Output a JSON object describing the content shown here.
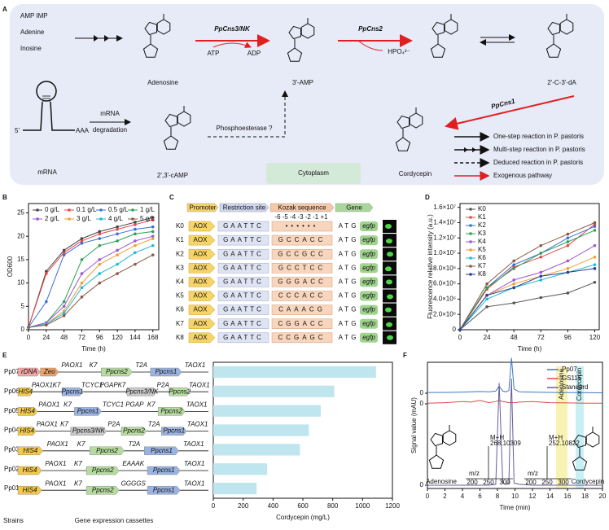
{
  "panel_labels": [
    "A",
    "B",
    "C",
    "D",
    "E",
    "F"
  ],
  "panel_a": {
    "sources": [
      "AMP  IMP",
      "Adenine",
      "Inosine"
    ],
    "compounds": [
      "Adenosine",
      "3'-AMP",
      "2'-C-3'-dA",
      "2',3'-cAMP",
      "Cordycepin"
    ],
    "enzymes": [
      "PpCns3/NK",
      "PpCns2",
      "PpCns1"
    ],
    "cofactors": [
      "ATP",
      "ADP",
      "HPO₄²⁻"
    ],
    "mrna": {
      "strand_5": "5'",
      "tail": "AAA",
      "name": "mRNA"
    },
    "degradation": [
      "mRNA",
      "degradation"
    ],
    "phosphoesterase": "Phosphoesterase ?",
    "compartment": "Cytoplasm",
    "legend": [
      "One-step reaction in P. pastoris",
      "Multi-step reaction in P. pastoris",
      "Deduced reaction in P. pastoris",
      "Exogenous pathway"
    ]
  },
  "panel_c": {
    "headers": [
      "Promoter",
      "Restriction site",
      "Kozak sequence",
      "Gene"
    ],
    "positions": "-6 -5 -4 -3 -2 -1 +1",
    "rows": [
      {
        "name": "K0",
        "promoter": "AOX",
        "site": "GAATTC",
        "kozak": "••••••",
        "start": "ATG",
        "gene": "egfp"
      },
      {
        "name": "K1",
        "promoter": "AOX",
        "site": "GAATTC",
        "kozak": "GCCACC",
        "start": "ATG",
        "gene": "egfp"
      },
      {
        "name": "K2",
        "promoter": "AOX",
        "site": "GAATTC",
        "kozak": "GCCGCC",
        "start": "ATG",
        "gene": "egfp"
      },
      {
        "name": "K3",
        "promoter": "AOX",
        "site": "GAATTC",
        "kozak": "GCCTCC",
        "start": "ATG",
        "gene": "egfp"
      },
      {
        "name": "K4",
        "promoter": "AOX",
        "site": "GAATTC",
        "kozak": "GGGACC",
        "start": "ATG",
        "gene": "egfp"
      },
      {
        "name": "K5",
        "promoter": "AOX",
        "site": "GAATTC",
        "kozak": "CCCACC",
        "start": "ATG",
        "gene": "egfp"
      },
      {
        "name": "K6",
        "promoter": "AOX",
        "site": "GAATTC",
        "kozak": "CAAACG",
        "start": "ATG",
        "gene": "egfp"
      },
      {
        "name": "K7",
        "promoter": "AOX",
        "site": "GAATTC",
        "kozak": "CGGACC",
        "start": "ATG",
        "gene": "egfp"
      },
      {
        "name": "K8",
        "promoter": "AOX",
        "site": "GAATTC",
        "kozak": "CCGAGC",
        "start": "ATG",
        "gene": "egfp"
      }
    ]
  },
  "panel_e": {
    "strains_label": "Strains",
    "cassettes_label": "Gene expression cassettes",
    "cassettes": [
      [
        {
          "label": "rDNA",
          "color": "#f4a6a6"
        },
        {
          "label": "Zeo",
          "color": "#e9a36a"
        },
        {
          "label": "PAOX1"
        },
        {
          "label": "K7"
        },
        {
          "label": "Ppcns2",
          "color": "#b6dba0"
        },
        {
          "label": "T2A"
        },
        {
          "label": "Ppcns1",
          "color": "#9bb3e0"
        },
        {
          "label": "TAOX1"
        }
      ],
      [
        {
          "label": "HIS4",
          "color": "#f2c94c"
        },
        {
          "label": "PAOX1"
        },
        {
          "label": "K7"
        },
        {
          "label": "Ppcns1",
          "color": "#9bb3e0"
        },
        {
          "label": "TCYC1"
        },
        {
          "label": "PGAP"
        },
        {
          "label": "K7"
        },
        {
          "label": "Ppcns3/NK",
          "color": "#c9c9c9"
        },
        {
          "label": "P2A"
        },
        {
          "label": "Ppcns2",
          "color": "#b6dba0"
        },
        {
          "label": "TAOX1"
        }
      ],
      [
        {
          "label": "HIS4",
          "color": "#f2c94c"
        },
        {
          "label": "PAOX1"
        },
        {
          "label": "K7"
        },
        {
          "label": "Ppcns1",
          "color": "#9bb3e0"
        },
        {
          "label": "TCYC1"
        },
        {
          "label": "PGAP"
        },
        {
          "label": "K7"
        },
        {
          "label": "Ppcns2",
          "color": "#b6dba0"
        },
        {
          "label": "TAOX1"
        }
      ],
      [
        {
          "label": "HIS4",
          "color": "#f2c94c"
        },
        {
          "label": "PAOX1"
        },
        {
          "label": "K7"
        },
        {
          "label": "Ppcns3/NK",
          "color": "#c9c9c9"
        },
        {
          "label": "P2A"
        },
        {
          "label": "Ppcns2",
          "color": "#b6dba0"
        },
        {
          "label": "T2A"
        },
        {
          "label": "Ppcns1",
          "color": "#9bb3e0"
        },
        {
          "label": "TAOX1"
        }
      ],
      [
        {
          "label": "HIS4",
          "color": "#f2c94c"
        },
        {
          "label": "PAOX1"
        },
        {
          "label": "K7"
        },
        {
          "label": "Ppcns2",
          "color": "#b6dba0"
        },
        {
          "label": "T2A"
        },
        {
          "label": "Ppcns1",
          "color": "#9bb3e0"
        },
        {
          "label": "TAOX1"
        }
      ],
      [
        {
          "label": "HIS4",
          "color": "#f2c94c"
        },
        {
          "label": "PAOX1"
        },
        {
          "label": "K7"
        },
        {
          "label": "Ppcns2",
          "color": "#b6dba0"
        },
        {
          "label": "EAAAK"
        },
        {
          "label": "Ppcns1",
          "color": "#9bb3e0"
        },
        {
          "label": "TAOX1"
        }
      ],
      [
        {
          "label": "HIS4",
          "color": "#f2c94c"
        },
        {
          "label": "PAOX1"
        },
        {
          "label": "K7"
        },
        {
          "label": "Ppcns2",
          "color": "#b6dba0"
        },
        {
          "label": "GGGGS"
        },
        {
          "label": "Ppcns1",
          "color": "#9bb3e0"
        },
        {
          "label": "TAOX1"
        }
      ]
    ]
  },
  "chart_data": [
    {
      "type": "line",
      "x_label": "Time (h)",
      "y_label": "OD600",
      "x": [
        0,
        24,
        48,
        72,
        96,
        120,
        144,
        168
      ],
      "xlim": [
        0,
        176
      ],
      "xticks": [
        0,
        24,
        48,
        72,
        96,
        120,
        144,
        168
      ],
      "ylim": [
        0,
        27
      ],
      "yticks": [
        0,
        5,
        10,
        15,
        20,
        25
      ],
      "series": [
        {
          "name": "0 g/L",
          "color": "#444444",
          "values": [
            0.5,
            12.5,
            17,
            19.5,
            21,
            22,
            23,
            24
          ]
        },
        {
          "name": "0.1 g/L",
          "color": "#e8464a",
          "values": [
            0.5,
            12,
            16.5,
            19,
            20.5,
            21.5,
            22.5,
            23.5
          ]
        },
        {
          "name": "0.5 g/L",
          "color": "#3b6fd8",
          "values": [
            0.5,
            6,
            16,
            18.5,
            19.5,
            20.5,
            21.5,
            22
          ]
        },
        {
          "name": "1 g/L",
          "color": "#2ca05a",
          "values": [
            0.5,
            1.5,
            6,
            15,
            18,
            19,
            20.5,
            21
          ]
        },
        {
          "name": "2 g/L",
          "color": "#9b59d0",
          "values": [
            0.5,
            1.5,
            5,
            12,
            15,
            17,
            19,
            20
          ]
        },
        {
          "name": "3 g/L",
          "color": "#f0a030",
          "values": [
            0.5,
            1.2,
            4,
            10,
            14,
            16,
            18,
            19.5
          ]
        },
        {
          "name": "4 g/L",
          "color": "#20b8d8",
          "values": [
            0.5,
            1.2,
            3.5,
            9,
            12,
            14,
            16.5,
            18
          ]
        },
        {
          "name": "5 g/L",
          "color": "#8a5a44",
          "values": [
            0.5,
            1,
            3,
            7,
            10,
            12,
            14,
            16
          ]
        }
      ]
    },
    {
      "type": "line",
      "x_label": "Time (h)",
      "y_label": "Fluorescence relative intensity (a.u.)",
      "x": [
        0,
        24,
        48,
        72,
        96,
        120
      ],
      "xlim": [
        0,
        124
      ],
      "xticks": [
        0,
        24,
        48,
        72,
        96,
        120
      ],
      "ylim": [
        0,
        16500000
      ],
      "yticks": [
        0,
        {
          "value": 2000000,
          "label": "2.0×10⁶"
        },
        {
          "value": 4000000,
          "label": "4.0×10⁶"
        },
        {
          "value": 6000000,
          "label": "6.0×10⁶"
        },
        {
          "value": 8000000,
          "label": "8.0×10⁶"
        },
        {
          "value": 10000000,
          "label": "1.0×10⁷"
        },
        {
          "value": 12000000,
          "label": "1.2×10⁷"
        },
        {
          "value": 14000000,
          "label": "1.4×10⁷"
        },
        {
          "value": 16000000,
          "label": "1.6×10⁷"
        }
      ],
      "series": [
        {
          "name": "K0",
          "color": "#555555",
          "values": [
            0,
            3000000,
            3500000,
            4200000,
            4800000,
            6200000
          ]
        },
        {
          "name": "K1",
          "color": "#e8464a",
          "values": [
            0,
            5300000,
            8200000,
            9500000,
            11000000,
            13800000
          ]
        },
        {
          "name": "K2",
          "color": "#3b6fd8",
          "values": [
            0,
            5500000,
            8500000,
            10000000,
            12000000,
            13500000
          ]
        },
        {
          "name": "K3",
          "color": "#2ca05a",
          "values": [
            0,
            5500000,
            8000000,
            10000000,
            11500000,
            13000000
          ]
        },
        {
          "name": "K4",
          "color": "#9b59d0",
          "values": [
            0,
            4500000,
            6500000,
            7500000,
            9000000,
            11000000
          ]
        },
        {
          "name": "K5",
          "color": "#f0a030",
          "values": [
            0,
            4500000,
            6000000,
            7000000,
            8000000,
            9500000
          ]
        },
        {
          "name": "K6",
          "color": "#20b8d8",
          "values": [
            0,
            4000000,
            5500000,
            6500000,
            7500000,
            8500000
          ]
        },
        {
          "name": "K7",
          "color": "#8a5a44",
          "values": [
            0,
            6000000,
            9000000,
            11000000,
            12500000,
            14000000
          ]
        },
        {
          "name": "K8",
          "color": "#2a3f8f",
          "values": [
            0,
            4500000,
            5500000,
            7000000,
            7500000,
            8000000
          ]
        }
      ]
    },
    {
      "type": "hbar",
      "x_label": "Cordycepin (mg/L)",
      "color": "#bfe6ef",
      "categories": [
        "Pp07",
        "Pp06",
        "Pp05",
        "Pp04",
        "Pp03",
        "Pp02",
        "Pp01"
      ],
      "values": [
        1090,
        810,
        720,
        640,
        580,
        360,
        290
      ],
      "xlim": [
        0,
        1200
      ],
      "xticks": [
        0,
        200,
        400,
        600,
        800,
        1000,
        1200
      ]
    },
    {
      "type": "trace",
      "x_label": "Time (min)",
      "y_label": "Signal value (mAU)",
      "x": [
        0,
        2,
        4,
        5,
        6,
        7,
        7.8,
        8.2,
        8.6,
        9,
        9.3,
        9.6,
        9.9,
        10.5,
        12,
        14,
        16,
        18,
        20
      ],
      "xlim": [
        0,
        20
      ],
      "xticks": [
        0,
        2,
        4,
        6,
        8,
        10,
        12,
        14,
        16,
        18,
        20
      ],
      "series": [
        {
          "name": "Pp07",
          "color": "#3a78c8",
          "ylim": [
            0,
            2.6
          ],
          "yticks": [
            0
          ],
          "values": [
            0.05,
            0.06,
            0.08,
            0.1,
            0.12,
            0.1,
            0.15,
            0.5,
            0.15,
            0.1,
            0.2,
            2.5,
            0.3,
            0.1,
            0.08,
            0.06,
            0.05,
            0.04,
            0.03
          ]
        },
        {
          "name": "GS115",
          "color": "#e04a4a",
          "ylim": [
            0,
            1
          ],
          "yticks": [
            0
          ],
          "values": [
            0.05,
            0.1,
            0.2,
            0.15,
            0.3,
            0.1,
            0.2,
            0.3,
            0.2,
            0.15,
            0.1,
            0.1,
            0.1,
            0.15,
            0.2,
            0.1,
            0.08,
            0.05,
            0.05
          ]
        },
        {
          "name": "Standard",
          "color": "#6a5a9a",
          "ylim": [
            0,
            2.6
          ],
          "yticks": [
            0
          ],
          "values": [
            0,
            0,
            0,
            0,
            0,
            0,
            0.02,
            2.3,
            0.05,
            0.02,
            0.05,
            2.4,
            0.05,
            0.02,
            0,
            0,
            0,
            0,
            0
          ]
        }
      ],
      "peak_labels": [
        "Adenosine",
        "Cordycepin"
      ],
      "insets": [
        {
          "ion": "M+H",
          "mz": "268.10309",
          "axis": "m/z",
          "ticks": [
            "200",
            "250",
            "300"
          ],
          "name": "Adenosine"
        },
        {
          "ion": "M+H",
          "mz": "252.10822",
          "axis": "m/z",
          "ticks": [
            "200",
            "250",
            "300"
          ],
          "name": "Cordycepin"
        }
      ]
    }
  ]
}
